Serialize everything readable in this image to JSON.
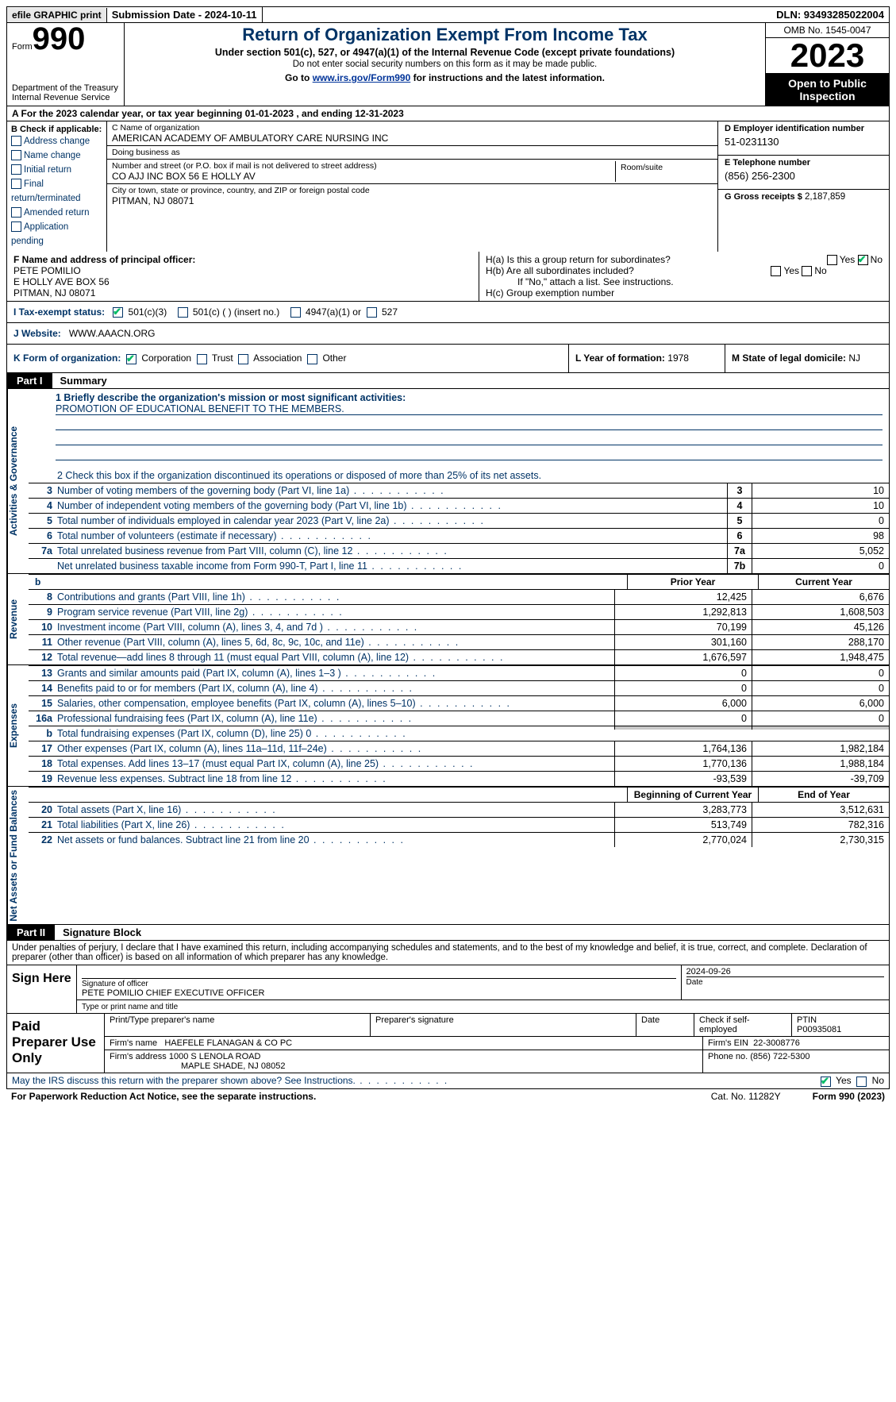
{
  "topbar": {
    "efile": "efile GRAPHIC print",
    "sub_date_label": "Submission Date - 2024-10-11",
    "dln": "DLN: 93493285022004"
  },
  "header": {
    "form_word": "Form",
    "form_num": "990",
    "dept": "Department of the Treasury\nInternal Revenue Service",
    "title": "Return of Organization Exempt From Income Tax",
    "sub1": "Under section 501(c), 527, or 4947(a)(1) of the Internal Revenue Code (except private foundations)",
    "sub2": "Do not enter social security numbers on this form as it may be made public.",
    "sub3_pre": "Go to ",
    "sub3_link": "www.irs.gov/Form990",
    "sub3_post": " for instructions and the latest information.",
    "omb": "OMB No. 1545-0047",
    "year": "2023",
    "open": "Open to Public Inspection"
  },
  "line_a": "A For the 2023 calendar year, or tax year beginning 01-01-2023   , and ending 12-31-2023",
  "box_b": {
    "title": "B Check if applicable:",
    "opts": [
      "Address change",
      "Name change",
      "Initial return",
      "Final return/terminated",
      "Amended return",
      "Application pending"
    ]
  },
  "box_c": {
    "name_lbl": "C Name of organization",
    "name": "AMERICAN ACADEMY OF AMBULATORY CARE NURSING INC",
    "dba_lbl": "Doing business as",
    "dba": "",
    "street_lbl": "Number and street (or P.O. box if mail is not delivered to street address)",
    "street": "CO AJJ INC BOX 56 E HOLLY AV",
    "room_lbl": "Room/suite",
    "city_lbl": "City or town, state or province, country, and ZIP or foreign postal code",
    "city": "PITMAN, NJ  08071"
  },
  "box_d": {
    "ein_lbl": "D Employer identification number",
    "ein": "51-0231130",
    "tel_lbl": "E Telephone number",
    "tel": "(856) 256-2300",
    "gross_lbl": "G Gross receipts $",
    "gross": "2,187,859"
  },
  "box_f": {
    "lbl": "F  Name and address of principal officer:",
    "name": "PETE POMILIO",
    "addr1": "E HOLLY AVE BOX 56",
    "addr2": "PITMAN, NJ  08071"
  },
  "box_h": {
    "ha": "H(a)  Is this a group return for subordinates?",
    "hb": "H(b)  Are all subordinates included?",
    "hb_note": "If \"No,\" attach a list. See instructions.",
    "hc": "H(c)  Group exemption number"
  },
  "row_i": {
    "label": "I   Tax-exempt status:",
    "opts": [
      "501(c)(3)",
      "501(c) (  ) (insert no.)",
      "4947(a)(1) or",
      "527"
    ]
  },
  "row_j": {
    "label": "J   Website:",
    "val": "WWW.AAACN.ORG"
  },
  "row_k": {
    "label": "K Form of organization:",
    "opts": [
      "Corporation",
      "Trust",
      "Association",
      "Other"
    ],
    "l_label": "L Year of formation:",
    "l_val": "1978",
    "m_label": "M State of legal domicile:",
    "m_val": "NJ"
  },
  "part1": {
    "tag": "Part I",
    "title": "Summary"
  },
  "summary": {
    "sections": [
      {
        "vtab": "Activities & Governance",
        "mission_lbl": "1   Briefly describe the organization's mission or most significant activities:",
        "mission": "PROMOTION OF EDUCATIONAL BENEFIT TO THE MEMBERS.",
        "line2": "2   Check this box      if the organization discontinued its operations or disposed of more than 25% of its net assets.",
        "rows": [
          {
            "n": "3",
            "d": "Number of voting members of the governing body (Part VI, line 1a)",
            "box": "3",
            "v": "10"
          },
          {
            "n": "4",
            "d": "Number of independent voting members of the governing body (Part VI, line 1b)",
            "box": "4",
            "v": "10"
          },
          {
            "n": "5",
            "d": "Total number of individuals employed in calendar year 2023 (Part V, line 2a)",
            "box": "5",
            "v": "0"
          },
          {
            "n": "6",
            "d": "Total number of volunteers (estimate if necessary)",
            "box": "6",
            "v": "98"
          },
          {
            "n": "7a",
            "d": "Total unrelated business revenue from Part VIII, column (C), line 12",
            "box": "7a",
            "v": "5,052"
          },
          {
            "n": "",
            "d": "Net unrelated business taxable income from Form 990-T, Part I, line 11",
            "box": "7b",
            "v": "0"
          }
        ]
      },
      {
        "vtab": "Revenue",
        "hdr_b": "b",
        "hdr_prior": "Prior Year",
        "hdr_cur": "Current Year",
        "rows": [
          {
            "n": "8",
            "d": "Contributions and grants (Part VIII, line 1h)",
            "p": "12,425",
            "c": "6,676"
          },
          {
            "n": "9",
            "d": "Program service revenue (Part VIII, line 2g)",
            "p": "1,292,813",
            "c": "1,608,503"
          },
          {
            "n": "10",
            "d": "Investment income (Part VIII, column (A), lines 3, 4, and 7d )",
            "p": "70,199",
            "c": "45,126"
          },
          {
            "n": "11",
            "d": "Other revenue (Part VIII, column (A), lines 5, 6d, 8c, 9c, 10c, and 11e)",
            "p": "301,160",
            "c": "288,170"
          },
          {
            "n": "12",
            "d": "Total revenue—add lines 8 through 11 (must equal Part VIII, column (A), line 12)",
            "p": "1,676,597",
            "c": "1,948,475"
          }
        ]
      },
      {
        "vtab": "Expenses",
        "rows": [
          {
            "n": "13",
            "d": "Grants and similar amounts paid (Part IX, column (A), lines 1–3 )",
            "p": "0",
            "c": "0"
          },
          {
            "n": "14",
            "d": "Benefits paid to or for members (Part IX, column (A), line 4)",
            "p": "0",
            "c": "0"
          },
          {
            "n": "15",
            "d": "Salaries, other compensation, employee benefits (Part IX, column (A), lines 5–10)",
            "p": "6,000",
            "c": "6,000"
          },
          {
            "n": "16a",
            "d": "Professional fundraising fees (Part IX, column (A), line 11e)",
            "p": "0",
            "c": "0"
          },
          {
            "n": "b",
            "d": "Total fundraising expenses (Part IX, column (D), line 25) 0",
            "p": "",
            "c": "",
            "grey": true
          },
          {
            "n": "17",
            "d": "Other expenses (Part IX, column (A), lines 11a–11d, 11f–24e)",
            "p": "1,764,136",
            "c": "1,982,184"
          },
          {
            "n": "18",
            "d": "Total expenses. Add lines 13–17 (must equal Part IX, column (A), line 25)",
            "p": "1,770,136",
            "c": "1,988,184"
          },
          {
            "n": "19",
            "d": "Revenue less expenses. Subtract line 18 from line 12",
            "p": "-93,539",
            "c": "-39,709"
          }
        ]
      },
      {
        "vtab": "Net Assets or Fund Balances",
        "hdr_prior": "Beginning of Current Year",
        "hdr_cur": "End of Year",
        "rows": [
          {
            "n": "20",
            "d": "Total assets (Part X, line 16)",
            "p": "3,283,773",
            "c": "3,512,631"
          },
          {
            "n": "21",
            "d": "Total liabilities (Part X, line 26)",
            "p": "513,749",
            "c": "782,316"
          },
          {
            "n": "22",
            "d": "Net assets or fund balances. Subtract line 21 from line 20",
            "p": "2,770,024",
            "c": "2,730,315"
          }
        ]
      }
    ]
  },
  "part2": {
    "tag": "Part II",
    "title": "Signature Block"
  },
  "sig": {
    "penalty": "Under penalties of perjury, I declare that I have examined this return, including accompanying schedules and statements, and to the best of my knowledge and belief, it is true, correct, and complete. Declaration of preparer (other than officer) is based on all information of which preparer has any knowledge.",
    "sign_here": "Sign Here",
    "sig_date": "2024-09-26",
    "officer_line": "Signature of officer",
    "officer_name": "PETE POMILIO  CHIEF EXECUTIVE OFFICER",
    "type_line": "Type or print name and title",
    "date_lbl": "Date"
  },
  "prep": {
    "label": "Paid Preparer Use Only",
    "h_name": "Print/Type preparer's name",
    "h_sig": "Preparer's signature",
    "h_date": "Date",
    "h_self": "Check       if self-employed",
    "h_ptin": "PTIN",
    "ptin": "P00935081",
    "firm_name_lbl": "Firm's name",
    "firm_name": "HAEFELE FLANAGAN & CO PC",
    "firm_ein_lbl": "Firm's EIN",
    "firm_ein": "22-3008776",
    "firm_addr_lbl": "Firm's address",
    "firm_addr1": "1000 S LENOLA ROAD",
    "firm_addr2": "MAPLE SHADE, NJ  08052",
    "phone_lbl": "Phone no.",
    "phone": "(856) 722-5300"
  },
  "footer": {
    "may": "May the IRS discuss this return with the preparer shown above? See Instructions.",
    "paperwork": "For Paperwork Reduction Act Notice, see the separate instructions.",
    "cat": "Cat. No. 11282Y",
    "form": "Form 990 (2023)"
  },
  "colors": {
    "link": "#003399",
    "label_blue": "#003366",
    "check_green": "#00aa55",
    "grey_cell": "#c8c8c8"
  }
}
